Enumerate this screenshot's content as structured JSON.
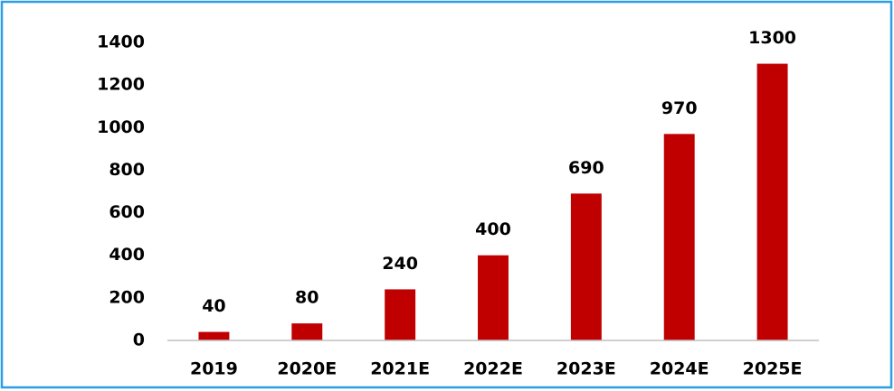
{
  "chart_data": {
    "type": "bar",
    "categories": [
      "2019",
      "2020E",
      "2021E",
      "2022E",
      "2023E",
      "2024E",
      "2025E"
    ],
    "values": [
      40,
      80,
      240,
      400,
      690,
      970,
      1300
    ],
    "color": "#c00000",
    "ylim": [
      0,
      1400
    ],
    "yticks": [
      0,
      200,
      400,
      600,
      800,
      1000,
      1200,
      1400
    ],
    "grid": false
  }
}
